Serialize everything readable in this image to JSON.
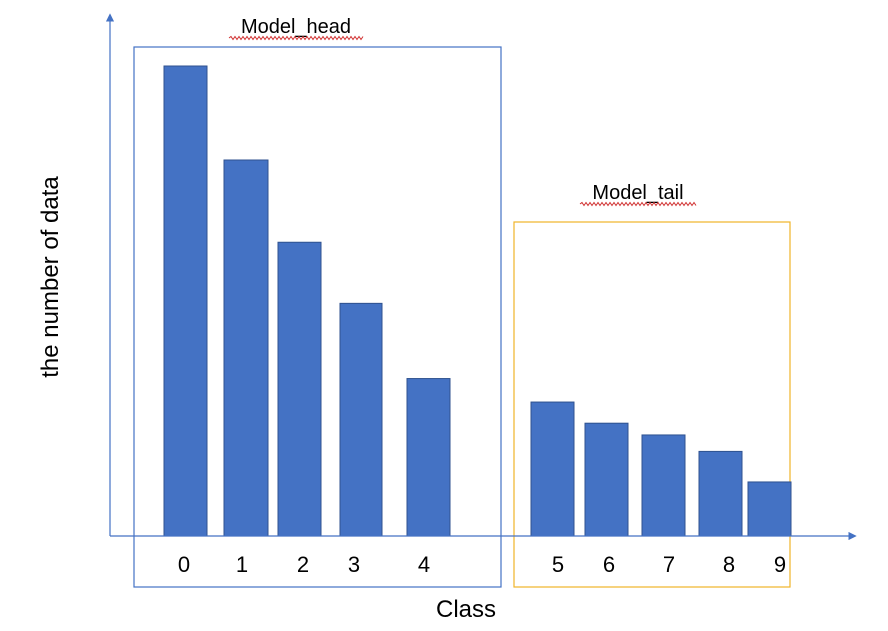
{
  "chart_data": {
    "type": "bar",
    "title": "",
    "xlabel": "Class",
    "ylabel": "the number of data",
    "categories": [
      "0",
      "1",
      "2",
      "3",
      "4",
      "5",
      "6",
      "7",
      "8",
      "9"
    ],
    "values": [
      100,
      80,
      62.5,
      49.5,
      33.5,
      28.5,
      24,
      21.5,
      18,
      11.5
    ],
    "ylim": [
      0,
      112
    ],
    "grid": false,
    "groups": [
      {
        "label": "Model_head",
        "categories": [
          "0",
          "1",
          "2",
          "3",
          "4"
        ],
        "color": "#4472c4"
      },
      {
        "label": "Model_tail",
        "categories": [
          "5",
          "6",
          "7",
          "8",
          "9"
        ],
        "color": "#f0b429"
      }
    ],
    "colors": {
      "bar": "#4472c4",
      "bar_edge": "#2f528f",
      "axis": "#4472c4"
    }
  }
}
